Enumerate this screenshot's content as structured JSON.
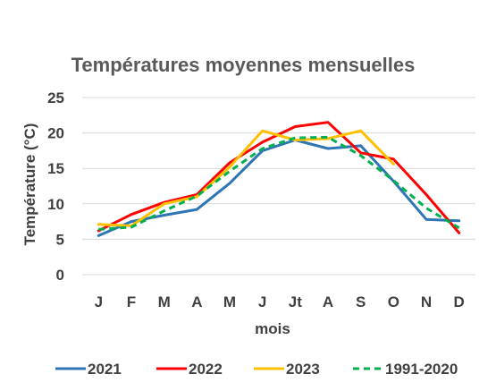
{
  "chart_data": {
    "type": "line",
    "title": "Températures moyennes mensuelles",
    "xlabel": "mois",
    "ylabel": "Température (°C)",
    "ylim": [
      0,
      25
    ],
    "yticks": [
      "0",
      "5",
      "10",
      "15",
      "20",
      "25"
    ],
    "grid": true,
    "legend_position": "bottom",
    "categories": [
      "J",
      "F",
      "M",
      "A",
      "M",
      "J",
      "Jt",
      "A",
      "S",
      "O",
      "N",
      "D"
    ],
    "series": [
      {
        "name": "2021",
        "color": "#2E75B6",
        "dash": false,
        "values": [
          5.5,
          7.5,
          8.4,
          9.2,
          12.9,
          17.5,
          19.0,
          17.8,
          18.2,
          13.2,
          7.8,
          7.6
        ]
      },
      {
        "name": "2022",
        "color": "#FF0000",
        "dash": false,
        "values": [
          6.2,
          8.5,
          10.2,
          11.3,
          15.8,
          18.7,
          20.9,
          21.5,
          17.2,
          16.3,
          11.3,
          5.9
        ]
      },
      {
        "name": "2023",
        "color": "#FFC000",
        "dash": false,
        "values": [
          7.1,
          6.9,
          10.0,
          11.0,
          15.2,
          20.3,
          19.0,
          19.2,
          20.3,
          15.6,
          null,
          null
        ]
      },
      {
        "name": "1991-2020",
        "color": "#00B050",
        "dash": true,
        "values": [
          6.4,
          6.7,
          9.0,
          11.1,
          14.6,
          17.8,
          19.3,
          19.4,
          16.8,
          13.3,
          9.4,
          6.6
        ]
      }
    ]
  }
}
